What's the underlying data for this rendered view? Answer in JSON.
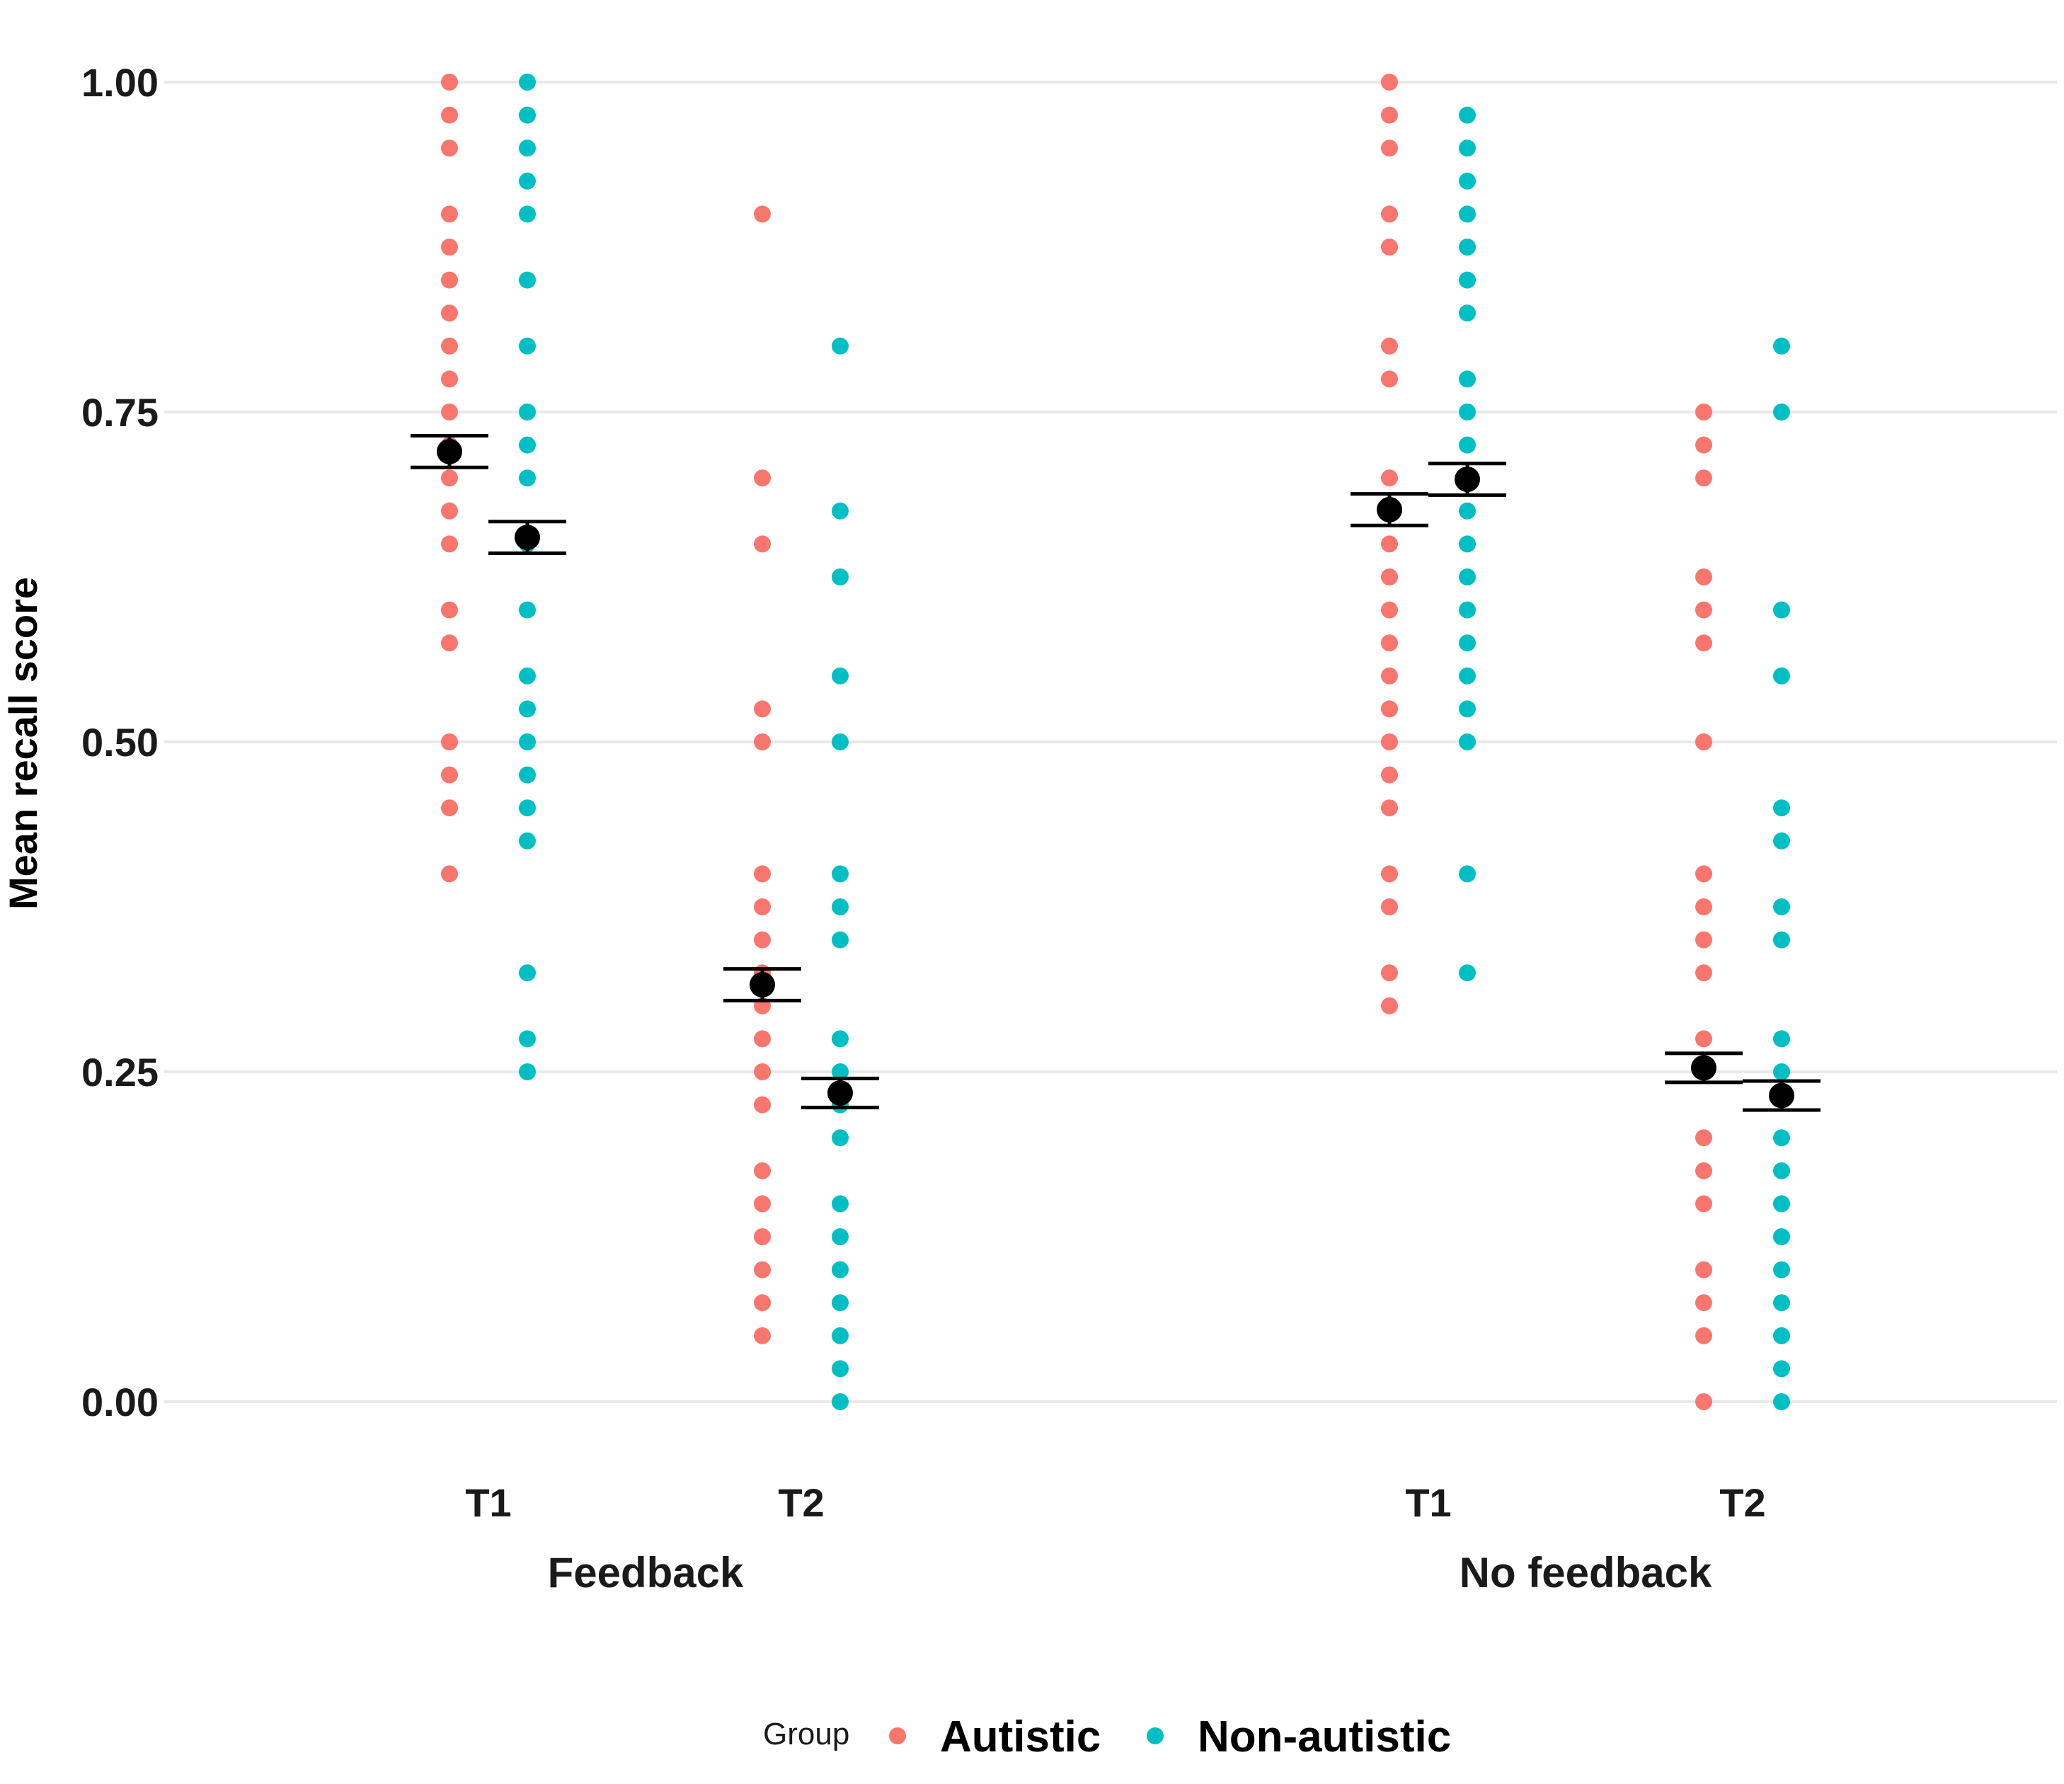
{
  "chart_data": {
    "type": "scatter",
    "ylabel": "Mean recall score",
    "ylim": [
      0,
      1
    ],
    "yticks": [
      "0.00",
      "0.25",
      "0.50",
      "0.75",
      "1.00"
    ],
    "grid": true,
    "legend": {
      "position": "bottom",
      "title": "Group",
      "entries": [
        {
          "name": "Autistic",
          "color": "#F8766D"
        },
        {
          "name": "Non-autistic",
          "color": "#00BFC4"
        }
      ]
    },
    "panels": [
      {
        "label": "Feedback",
        "times": [
          {
            "label": "T1",
            "series": [
              {
                "name": "Autistic",
                "mean": 0.72,
                "se": 0.012,
                "points": [
                  1.0,
                  0.975,
                  0.95,
                  0.9,
                  0.875,
                  0.85,
                  0.825,
                  0.8,
                  0.775,
                  0.75,
                  0.725,
                  0.7,
                  0.675,
                  0.65,
                  0.6,
                  0.575,
                  0.5,
                  0.475,
                  0.45,
                  0.4
                ]
              },
              {
                "name": "Non-autistic",
                "mean": 0.655,
                "se": 0.012,
                "points": [
                  1.0,
                  0.975,
                  0.95,
                  0.925,
                  0.9,
                  0.85,
                  0.8,
                  0.75,
                  0.725,
                  0.7,
                  0.65,
                  0.6,
                  0.55,
                  0.525,
                  0.5,
                  0.475,
                  0.45,
                  0.425,
                  0.325,
                  0.275,
                  0.25
                ]
              }
            ]
          },
          {
            "label": "T2",
            "series": [
              {
                "name": "Autistic",
                "mean": 0.316,
                "se": 0.012,
                "points": [
                  0.9,
                  0.7,
                  0.65,
                  0.525,
                  0.5,
                  0.4,
                  0.375,
                  0.35,
                  0.325,
                  0.3,
                  0.275,
                  0.25,
                  0.225,
                  0.175,
                  0.15,
                  0.125,
                  0.1,
                  0.075,
                  0.05
                ]
              },
              {
                "name": "Non-autistic",
                "mean": 0.234,
                "se": 0.011,
                "points": [
                  0.8,
                  0.675,
                  0.625,
                  0.55,
                  0.5,
                  0.4,
                  0.375,
                  0.35,
                  0.275,
                  0.25,
                  0.225,
                  0.2,
                  0.15,
                  0.125,
                  0.1,
                  0.075,
                  0.05,
                  0.025,
                  0.0
                ]
              }
            ]
          }
        ]
      },
      {
        "label": "No feedback",
        "times": [
          {
            "label": "T1",
            "series": [
              {
                "name": "Autistic",
                "mean": 0.676,
                "se": 0.012,
                "points": [
                  1.0,
                  0.975,
                  0.95,
                  0.9,
                  0.875,
                  0.8,
                  0.775,
                  0.7,
                  0.65,
                  0.625,
                  0.6,
                  0.575,
                  0.55,
                  0.525,
                  0.5,
                  0.475,
                  0.45,
                  0.4,
                  0.375,
                  0.325,
                  0.3
                ]
              },
              {
                "name": "Non-autistic",
                "mean": 0.699,
                "se": 0.012,
                "points": [
                  0.975,
                  0.95,
                  0.925,
                  0.9,
                  0.875,
                  0.85,
                  0.825,
                  0.775,
                  0.75,
                  0.725,
                  0.675,
                  0.65,
                  0.625,
                  0.6,
                  0.575,
                  0.55,
                  0.525,
                  0.5,
                  0.4,
                  0.325
                ]
              }
            ]
          },
          {
            "label": "T2",
            "series": [
              {
                "name": "Autistic",
                "mean": 0.253,
                "se": 0.011,
                "points": [
                  0.75,
                  0.725,
                  0.7,
                  0.625,
                  0.6,
                  0.575,
                  0.5,
                  0.4,
                  0.375,
                  0.35,
                  0.325,
                  0.275,
                  0.2,
                  0.175,
                  0.15,
                  0.1,
                  0.075,
                  0.05,
                  0.0
                ]
              },
              {
                "name": "Non-autistic",
                "mean": 0.232,
                "se": 0.011,
                "points": [
                  0.8,
                  0.75,
                  0.6,
                  0.55,
                  0.45,
                  0.425,
                  0.375,
                  0.35,
                  0.275,
                  0.25,
                  0.2,
                  0.175,
                  0.15,
                  0.125,
                  0.1,
                  0.075,
                  0.05,
                  0.025,
                  0.0
                ]
              }
            ]
          }
        ]
      }
    ]
  }
}
